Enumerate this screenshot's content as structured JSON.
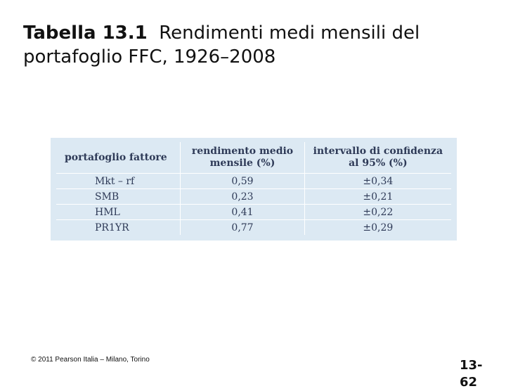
{
  "title": {
    "number": "Tabella 13.1",
    "text": "Rendimenti medi mensili del portafoglio FFC, 1926–2008"
  },
  "table": {
    "headers": {
      "factor": "portafoglio fattore",
      "return": "rendimento medio mensile (%)",
      "ci": "intervallo di confidenza al 95% (%)"
    },
    "rows": [
      {
        "factor": "Mkt – rf",
        "return": "0,59",
        "ci": "±0,34"
      },
      {
        "factor": "SMB",
        "return": "0,23",
        "ci": "±0,21"
      },
      {
        "factor": "HML",
        "return": "0,41",
        "ci": "±0,22"
      },
      {
        "factor": "PR1YR",
        "return": "0,77",
        "ci": "±0,29"
      }
    ]
  },
  "footer": {
    "copyright": "© 2011 Pearson Italia – Milano, Torino",
    "slide_number": "13-62"
  },
  "colors": {
    "table_background": "#dce9f3",
    "table_text": "#2e3a57"
  }
}
